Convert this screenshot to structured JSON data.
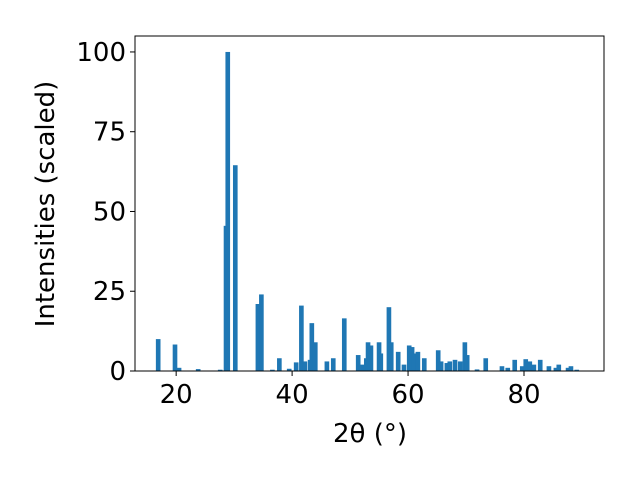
{
  "chart_data": {
    "type": "bar",
    "xlabel": "2θ (°)",
    "ylabel": "Intensities (scaled)",
    "color": "#1f77b4",
    "x": [
      16.9,
      19.8,
      20.5,
      23.8,
      27.6,
      28.6,
      28.9,
      30.2,
      34.1,
      34.7,
      36.6,
      37.8,
      39.5,
      40.7,
      41.6,
      42.2,
      43.1,
      43.4,
      44.0,
      46.0,
      47.1,
      49.0,
      51.4,
      52.2,
      52.8,
      53.1,
      53.6,
      55.0,
      55.3,
      56.7,
      57.1,
      58.3,
      59.3,
      60.2,
      60.7,
      61.0,
      61.7,
      62.8,
      65.2,
      65.7,
      66.7,
      67.2,
      68.1,
      69.0,
      69.8,
      70.2,
      71.9,
      73.4,
      76.2,
      77.2,
      78.4,
      79.7,
      80.3,
      81.0,
      81.7,
      82.8,
      84.3,
      85.5,
      86.0,
      87.6,
      88.1,
      89.1
    ],
    "values": [
      10,
      8.3,
      1,
      0.6,
      0.4,
      45.5,
      100,
      64.5,
      21,
      24,
      0.4,
      4,
      0.7,
      2.7,
      20.5,
      3,
      3.5,
      15,
      9,
      3,
      4,
      16.5,
      5,
      2,
      4,
      9,
      8,
      9,
      5.5,
      20,
      9,
      6,
      2,
      8,
      7.5,
      5.5,
      6,
      4,
      6.5,
      3,
      2.5,
      3,
      3.5,
      3,
      9,
      5,
      0.5,
      4,
      1.5,
      1,
      3.5,
      1.5,
      3.7,
      3,
      2,
      3.5,
      1.5,
      1,
      2,
      1,
      1.5,
      0.4
    ],
    "xlim": [
      12.9,
      93.8
    ],
    "ylim": [
      0,
      105
    ],
    "xticks": [
      20,
      40,
      60,
      80
    ],
    "yticks": [
      0,
      25,
      50,
      75,
      100
    ]
  }
}
